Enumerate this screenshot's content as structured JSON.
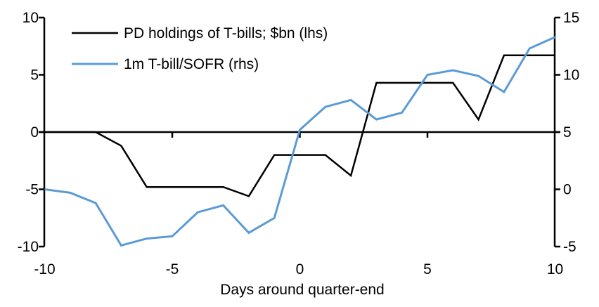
{
  "chart_data": {
    "type": "line",
    "title": "",
    "x_title": "Days around quarter-end",
    "x": [
      -10,
      -9,
      -8,
      -7,
      -6,
      -5,
      -4,
      -3,
      -2,
      -1,
      0,
      1,
      2,
      3,
      4,
      5,
      6,
      7,
      8,
      9,
      10
    ],
    "x_ticks": [
      -10,
      -5,
      0,
      5,
      10
    ],
    "left_axis": {
      "range": [
        -10,
        10
      ],
      "ticks": [
        10,
        5,
        0,
        -5,
        -10
      ]
    },
    "right_axis": {
      "range": [
        -5,
        15
      ],
      "ticks": [
        15,
        10,
        5,
        0,
        -5
      ]
    },
    "grid": false,
    "legend_position": "top-left",
    "axis_color": "#000000",
    "series": [
      {
        "name": "PD holdings of T-bills; $bn (lhs)",
        "axis": "left",
        "color": "#000000",
        "stroke_width": 2.5,
        "values": [
          0,
          0,
          0,
          -1.2,
          -4.8,
          -4.8,
          -4.8,
          -4.8,
          -5.6,
          -2,
          -2,
          -2,
          -3.8,
          4.3,
          4.3,
          4.3,
          4.3,
          1.1,
          6.7,
          6.7,
          6.7
        ]
      },
      {
        "name": "1m T-bill/SOFR (rhs)",
        "axis": "right",
        "color": "#5B9BD5",
        "stroke_width": 3,
        "values": [
          0,
          -0.3,
          -1.2,
          -4.9,
          -4.3,
          -4.1,
          -2,
          -1.4,
          -3.8,
          -2.5,
          5.2,
          7.2,
          7.8,
          6.1,
          6.7,
          10,
          10.4,
          9.9,
          8.5,
          12.3,
          13.3
        ]
      }
    ]
  }
}
